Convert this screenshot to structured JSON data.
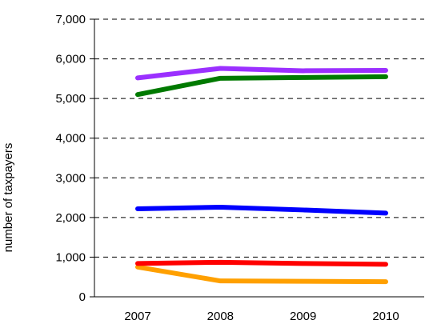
{
  "chart_data": {
    "type": "line",
    "title": "",
    "xlabel": "",
    "ylabel": "number of taxpayers",
    "categories": [
      "2007",
      "2008",
      "2009",
      "2010"
    ],
    "ylim": [
      0,
      7000
    ],
    "yticks": [
      0,
      1000,
      2000,
      3000,
      4000,
      5000,
      6000,
      7000
    ],
    "ytick_labels": [
      "0",
      "1,000",
      "2,000",
      "3,000",
      "4,000",
      "5,000",
      "6,000",
      "7,000"
    ],
    "grid": "horizontal dashed",
    "legend": "none",
    "series": [
      {
        "color": "#9b30ff",
        "values": [
          5520,
          5760,
          5700,
          5710
        ]
      },
      {
        "color": "#007a00",
        "values": [
          5100,
          5510,
          5530,
          5550
        ]
      },
      {
        "color": "#0000ff",
        "values": [
          2220,
          2260,
          2190,
          2110
        ]
      },
      {
        "color": "#ff0000",
        "values": [
          840,
          870,
          840,
          820
        ]
      },
      {
        "color": "#ffa000",
        "values": [
          750,
          400,
          390,
          380
        ]
      }
    ]
  }
}
